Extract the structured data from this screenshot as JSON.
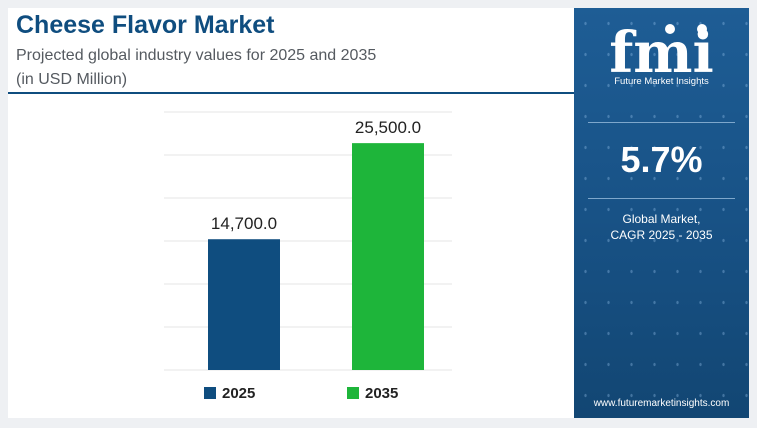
{
  "header": {
    "title": "Cheese Flavor Market",
    "subtitle_line1": "Projected global industry values for 2025 and 2035",
    "subtitle_line2": "(in USD Million)"
  },
  "chart_data": {
    "type": "bar",
    "categories": [
      "2025",
      "2035"
    ],
    "values": [
      14700.0,
      25500.0
    ],
    "value_labels": [
      "14,700.0",
      "25,500.0"
    ],
    "colors": [
      "#0f4d7f",
      "#1eb53a"
    ],
    "ylim": [
      0,
      29000
    ],
    "grid": true,
    "legend": "bottom",
    "legend_entries": [
      "2025",
      "2035"
    ]
  },
  "side_panel": {
    "logo_letters": "fmi",
    "logo_text": "Future Market Insights",
    "cagr_value": "5.7%",
    "cagr_label_line1": "Global Market,",
    "cagr_label_line2": "CAGR 2025 - 2035",
    "website": "www.futuremarketinsights.com"
  },
  "colors": {
    "title": "#0f4d7f",
    "panel_bg": "#185286",
    "grid": "#e6e6e6",
    "strip": [
      "#1eb53a",
      "#e8632b",
      "#8e3a9e"
    ]
  }
}
